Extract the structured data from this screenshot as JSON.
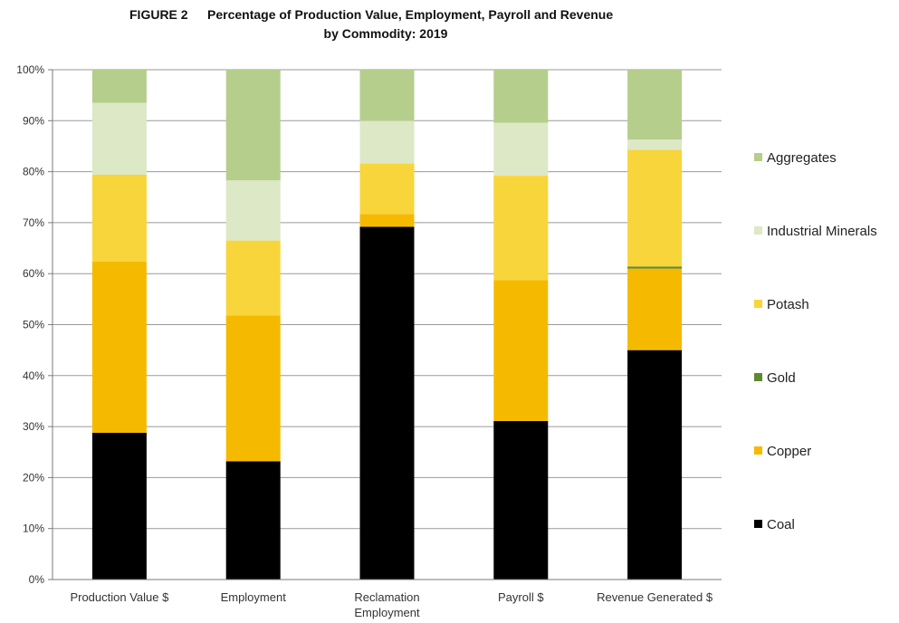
{
  "chart_data": {
    "type": "bar",
    "stacked": true,
    "title_prefix": "FIGURE 2",
    "title": "Percentage of Production Value, Employment, Payroll and Revenue",
    "subtitle": "by Commodity: 2019",
    "categories": [
      "Production Value $",
      "Employment",
      "Reclamation Employment",
      "Payroll $",
      "Revenue Generated $"
    ],
    "category_label_lines": [
      [
        "Production Value $"
      ],
      [
        "Employment"
      ],
      [
        "Reclamation",
        "Employment"
      ],
      [
        "Payroll $"
      ],
      [
        "Revenue Generated $"
      ]
    ],
    "ylim": [
      0,
      100
    ],
    "yticks": [
      "0%",
      "10%",
      "20%",
      "30%",
      "40%",
      "50%",
      "60%",
      "70%",
      "80%",
      "90%",
      "100%"
    ],
    "grid": true,
    "legend_position": "right",
    "series": [
      {
        "name": "Coal",
        "color": "#000000",
        "values": [
          28.8,
          23.2,
          69.2,
          31.1,
          45.0
        ]
      },
      {
        "name": "Copper",
        "color": "#F5BA00",
        "values": [
          33.6,
          28.6,
          2.5,
          27.6,
          16.0
        ]
      },
      {
        "name": "Gold",
        "color": "#5E8A2E",
        "values": [
          0.0,
          0.0,
          0.0,
          0.0,
          0.4
        ]
      },
      {
        "name": "Potash",
        "color": "#F8D53A",
        "values": [
          17.0,
          14.7,
          9.9,
          20.5,
          22.9
        ]
      },
      {
        "name": "Industrial Minerals",
        "color": "#DCE8C6",
        "values": [
          14.1,
          11.8,
          8.4,
          10.4,
          2.0
        ]
      },
      {
        "name": "Aggregates",
        "color": "#B5CE8C",
        "values": [
          6.5,
          21.7,
          10.0,
          10.4,
          13.7
        ]
      }
    ],
    "legend_order": [
      "Aggregates",
      "Industrial Minerals",
      "Potash",
      "Gold",
      "Copper",
      "Coal"
    ]
  }
}
